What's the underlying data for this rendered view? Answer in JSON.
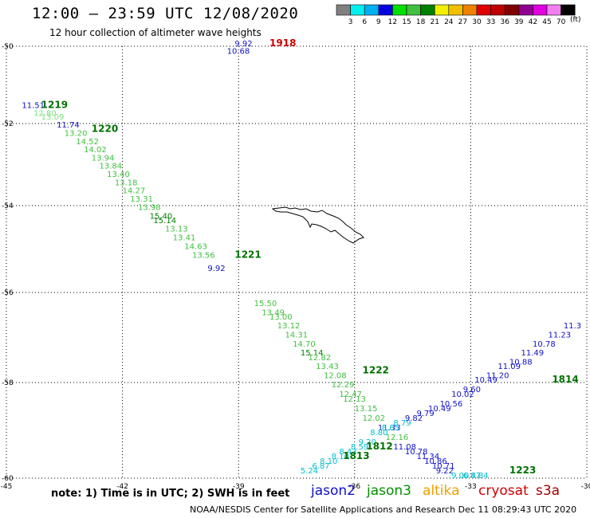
{
  "title": "12:00 – 23:59 UTC 12/08/2020",
  "subtitle": "12 hour collection of altimeter wave heights",
  "note": "note:  1) Time is in UTC;  2) SWH is in feet",
  "credit": "NOAA/NESDIS Center for Satellite Applications and Research    Dec 11 08:29:43 UTC 2020",
  "satellites": [
    {
      "name": "jason2",
      "color": "#1010c8"
    },
    {
      "name": "jason3",
      "color": "#009000"
    },
    {
      "name": "altika",
      "color": "#f0a000"
    },
    {
      "name": "cryosat",
      "color": "#d00000"
    },
    {
      "name": "s3a",
      "color": "#a00000"
    }
  ],
  "colorbar": {
    "unit": "(ft)",
    "labels": [
      "3",
      "6",
      "9",
      "12",
      "15",
      "18",
      "21",
      "24",
      "27",
      "30",
      "33",
      "36",
      "39",
      "42",
      "45",
      "70"
    ],
    "colors": [
      "#808080",
      "#00f0f0",
      "#00b0f0",
      "#0000e0",
      "#00e000",
      "#40c040",
      "#008000",
      "#f0f000",
      "#f0c000",
      "#f08000",
      "#e00000",
      "#c00000",
      "#800000",
      "#900090",
      "#e000e0",
      "#f080f0",
      "#000000"
    ]
  },
  "axes": {
    "lon_ticks": [
      "-45",
      "-42",
      "-39",
      "-36",
      "-33",
      "-30"
    ],
    "lat_ticks": [
      "-50",
      "-52",
      "-54",
      "-56",
      "-58",
      "-60"
    ]
  },
  "tracks": [
    {
      "pass": "1219",
      "pass_color": "#007000",
      "label_lon": -44.1,
      "label_lat": -51.6,
      "points": [
        {
          "lon": -44.6,
          "lat": -51.6,
          "v": "11.51",
          "c": "#1010c8"
        },
        {
          "lon": -44.3,
          "lat": -51.8,
          "v": "12.80",
          "c": "#80e080"
        },
        {
          "lon": -44.1,
          "lat": -51.9,
          "v": "13.09",
          "c": "#80e080"
        },
        {
          "lon": -43.7,
          "lat": -52.1,
          "v": "11.74",
          "c": "#1010c8"
        }
      ]
    },
    {
      "pass": "1220",
      "pass_color": "#007000",
      "label_lon": -42.8,
      "label_lat": -52.2,
      "points": [
        {
          "lon": -43.5,
          "lat": -52.3,
          "v": "13.20",
          "c": "#40c040"
        },
        {
          "lon": -43.2,
          "lat": -52.5,
          "v": "14.52",
          "c": "#40c040"
        },
        {
          "lon": -43.0,
          "lat": -52.7,
          "v": "14.02",
          "c": "#40c040"
        },
        {
          "lon": -42.8,
          "lat": -52.9,
          "v": "13.94",
          "c": "#40c040"
        },
        {
          "lon": -42.6,
          "lat": -53.1,
          "v": "13.84",
          "c": "#40c040"
        },
        {
          "lon": -42.4,
          "lat": -53.3,
          "v": "13.40",
          "c": "#40c040"
        },
        {
          "lon": -42.2,
          "lat": -53.5,
          "v": "13.18",
          "c": "#40c040"
        },
        {
          "lon": -42.0,
          "lat": -53.7,
          "v": "14.27",
          "c": "#40c040"
        },
        {
          "lon": -41.8,
          "lat": -53.9,
          "v": "13.31",
          "c": "#40c040"
        },
        {
          "lon": -41.6,
          "lat": -54.1,
          "v": "13.98",
          "c": "#40c040"
        },
        {
          "lon": -41.3,
          "lat": -54.3,
          "v": "15.40",
          "c": "#008000"
        },
        {
          "lon": -41.2,
          "lat": -54.4,
          "v": "15.14",
          "c": "#008000"
        },
        {
          "lon": -40.9,
          "lat": -54.6,
          "v": "13.13",
          "c": "#40c040"
        },
        {
          "lon": -40.7,
          "lat": -54.8,
          "v": "13.41",
          "c": "#40c040"
        },
        {
          "lon": -40.4,
          "lat": -55.0,
          "v": "14.63",
          "c": "#40c040"
        },
        {
          "lon": -40.2,
          "lat": -55.2,
          "v": "13.56",
          "c": "#40c040"
        },
        {
          "lon": -39.8,
          "lat": -55.5,
          "v": "9.92",
          "c": "#1010c8"
        }
      ]
    },
    {
      "pass": "1221",
      "pass_color": "#007000",
      "label_lon": -39.1,
      "label_lat": -55.2,
      "points": []
    },
    {
      "pass": "1222",
      "pass_color": "#007000",
      "label_lon": -35.8,
      "label_lat": -57.8,
      "points": [
        {
          "lon": -38.6,
          "lat": -56.3,
          "v": "15.50",
          "c": "#40c040"
        },
        {
          "lon": -38.4,
          "lat": -56.5,
          "v": "13.49",
          "c": "#40c040"
        },
        {
          "lon": -38.2,
          "lat": -56.6,
          "v": "13.00",
          "c": "#40c040"
        },
        {
          "lon": -38.0,
          "lat": -56.8,
          "v": "13.12",
          "c": "#40c040"
        },
        {
          "lon": -37.8,
          "lat": -57.0,
          "v": "14.31",
          "c": "#40c040"
        },
        {
          "lon": -37.6,
          "lat": -57.2,
          "v": "14.70",
          "c": "#40c040"
        },
        {
          "lon": -37.4,
          "lat": -57.4,
          "v": "15.14",
          "c": "#008000"
        },
        {
          "lon": -37.2,
          "lat": -57.5,
          "v": "12.82",
          "c": "#40c040"
        },
        {
          "lon": -37.0,
          "lat": -57.7,
          "v": "13.43",
          "c": "#40c040"
        },
        {
          "lon": -36.8,
          "lat": -57.9,
          "v": "12.08",
          "c": "#40c040"
        },
        {
          "lon": -36.6,
          "lat": -58.1,
          "v": "12.29",
          "c": "#40c040"
        },
        {
          "lon": -36.4,
          "lat": -58.3,
          "v": "12.47",
          "c": "#40c040"
        },
        {
          "lon": -36.3,
          "lat": -58.4,
          "v": "12.13",
          "c": "#40c040"
        },
        {
          "lon": -36.0,
          "lat": -58.6,
          "v": "13.15",
          "c": "#40c040"
        },
        {
          "lon": -35.8,
          "lat": -58.8,
          "v": "12.02",
          "c": "#40c040"
        },
        {
          "lon": -35.4,
          "lat": -59.0,
          "v": "11.33",
          "c": "#1010c8"
        },
        {
          "lon": -35.2,
          "lat": -59.2,
          "v": "12.16",
          "c": "#40c040"
        },
        {
          "lon": -35.0,
          "lat": -59.4,
          "v": "11.08",
          "c": "#1010c8"
        },
        {
          "lon": -34.7,
          "lat": -59.5,
          "v": "10.78",
          "c": "#1010c8"
        },
        {
          "lon": -34.4,
          "lat": -59.6,
          "v": "11.34",
          "c": "#1010c8"
        },
        {
          "lon": -34.2,
          "lat": -59.7,
          "v": "10.86",
          "c": "#1010c8"
        },
        {
          "lon": -34.0,
          "lat": -59.8,
          "v": "10.71",
          "c": "#1010c8"
        },
        {
          "lon": -33.9,
          "lat": -59.9,
          "v": "9.22",
          "c": "#1010c8"
        },
        {
          "lon": -33.5,
          "lat": -60.0,
          "v": "9.00",
          "c": "#00c0d0"
        },
        {
          "lon": -33.2,
          "lat": -60.1,
          "v": "6.87",
          "c": "#00c0d0"
        },
        {
          "lon": -33.0,
          "lat": -60.2,
          "v": "4.84",
          "c": "#00c0d0"
        }
      ]
    },
    {
      "pass": "1223",
      "pass_color": "#007000",
      "label_lon": -32.0,
      "label_lat": -59.9,
      "points": []
    },
    {
      "pass": "1812",
      "pass_color": "#007000",
      "label_lon": -35.7,
      "label_lat": -59.4,
      "points": [
        {
          "lon": -37.4,
          "lat": -59.9,
          "v": "5.24",
          "c": "#00c0d0"
        },
        {
          "lon": -37.1,
          "lat": -59.8,
          "v": "6.87",
          "c": "#00c0d0"
        },
        {
          "lon": -36.9,
          "lat": -59.7,
          "v": "8.10",
          "c": "#00c0d0"
        },
        {
          "lon": -36.6,
          "lat": -59.6,
          "v": "8.10",
          "c": "#00c0d0"
        },
        {
          "lon": -36.4,
          "lat": -59.5,
          "v": "8.43",
          "c": "#00c0d0"
        },
        {
          "lon": -36.1,
          "lat": -59.4,
          "v": "8.59",
          "c": "#00c0d0"
        },
        {
          "lon": -35.9,
          "lat": -59.3,
          "v": "9.20",
          "c": "#00c0d0"
        },
        {
          "lon": -35.6,
          "lat": -59.1,
          "v": "8.80",
          "c": "#00c0d0"
        },
        {
          "lon": -35.3,
          "lat": -59.0,
          "v": "8.65",
          "c": "#00c0d0"
        },
        {
          "lon": -35.0,
          "lat": -58.9,
          "v": "8.79",
          "c": "#00c0d0"
        },
        {
          "lon": -34.7,
          "lat": -58.8,
          "v": "9.82",
          "c": "#1010c8"
        },
        {
          "lon": -34.4,
          "lat": -58.7,
          "v": "9.79",
          "c": "#1010c8"
        }
      ]
    },
    {
      "pass": "1813",
      "pass_color": "#007000",
      "label_lon": -36.3,
      "label_lat": -59.6,
      "points": []
    },
    {
      "pass": "1814",
      "pass_color": "#007000",
      "label_lon": -30.9,
      "label_lat": -58.0,
      "points": [
        {
          "lon": -34.1,
          "lat": -58.6,
          "v": "10.49",
          "c": "#1010c8"
        },
        {
          "lon": -33.8,
          "lat": -58.5,
          "v": "10.56",
          "c": "#1010c8"
        },
        {
          "lon": -33.5,
          "lat": -58.3,
          "v": "10.02",
          "c": "#1010c8"
        },
        {
          "lon": -33.2,
          "lat": -58.2,
          "v": "9.60",
          "c": "#1010c8"
        },
        {
          "lon": -32.9,
          "lat": -58.0,
          "v": "10.49",
          "c": "#1010c8"
        },
        {
          "lon": -32.6,
          "lat": -57.9,
          "v": "11.20",
          "c": "#1010c8"
        },
        {
          "lon": -32.3,
          "lat": -57.7,
          "v": "11.09",
          "c": "#1010c8"
        },
        {
          "lon": -32.0,
          "lat": -57.6,
          "v": "10.88",
          "c": "#1010c8"
        },
        {
          "lon": -31.7,
          "lat": -57.4,
          "v": "11.49",
          "c": "#1010c8"
        },
        {
          "lon": -31.4,
          "lat": -57.2,
          "v": "10.78",
          "c": "#1010c8"
        },
        {
          "lon": -31.0,
          "lat": -57.0,
          "v": "11.23",
          "c": "#1010c8"
        },
        {
          "lon": -30.6,
          "lat": -56.8,
          "v": "11.3",
          "c": "#1010c8"
        }
      ]
    },
    {
      "pass": "1918",
      "pass_color": "#d00000",
      "label_lon": -38.2,
      "label_lat": -50.0,
      "points": [
        {
          "lon": -39.1,
          "lat": -50.0,
          "v": "9.92",
          "c": "#1010c8"
        },
        {
          "lon": -39.3,
          "lat": -50.2,
          "v": "10.68",
          "c": "#1010c8"
        }
      ]
    }
  ]
}
